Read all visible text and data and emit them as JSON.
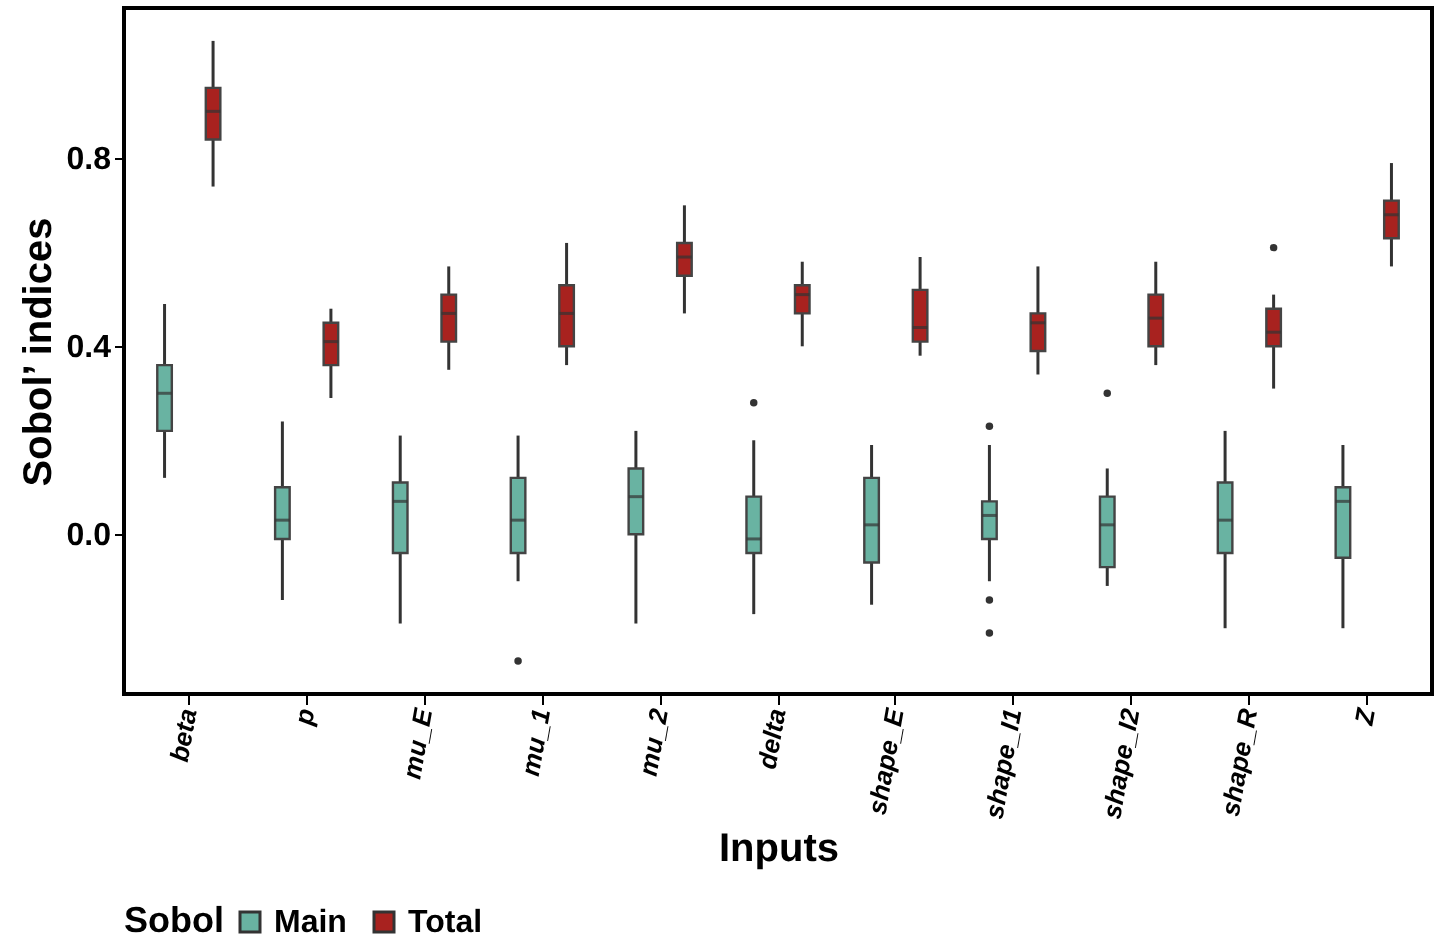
{
  "chart_data": {
    "type": "box",
    "xlabel": "Inputs",
    "ylabel": "Sobol’ indices",
    "legend_title": "Sobol",
    "legend": "bottom",
    "grid": false,
    "categories": [
      "beta",
      "p",
      "mu_E",
      "mu_1",
      "mu_2",
      "delta",
      "shape_E",
      "shape_I1",
      "shape_I2",
      "shape_R",
      "Z"
    ],
    "ylim": [
      -0.34,
      1.12
    ],
    "yticks": [
      {
        "value": 0,
        "label": "0.0"
      },
      {
        "value": 0.4,
        "label": "0.4"
      },
      {
        "value": 0.8,
        "label": "0.8"
      }
    ],
    "series": [
      {
        "name": "Main",
        "color": "#69b3a2",
        "boxes": [
          {
            "low": 0.12,
            "q1": 0.22,
            "median": 0.3,
            "q3": 0.36,
            "high": 0.49
          },
          {
            "low": -0.14,
            "q1": -0.01,
            "median": 0.03,
            "q3": 0.1,
            "high": 0.24
          },
          {
            "low": -0.19,
            "q1": -0.04,
            "median": 0.07,
            "q3": 0.11,
            "high": 0.21
          },
          {
            "low": -0.1,
            "q1": -0.04,
            "median": 0.03,
            "q3": 0.12,
            "high": 0.21,
            "outliers": [
              -0.27
            ]
          },
          {
            "low": -0.19,
            "q1": 0,
            "median": 0.08,
            "q3": 0.14,
            "high": 0.22
          },
          {
            "low": -0.17,
            "q1": -0.04,
            "median": -0.01,
            "q3": 0.08,
            "high": 0.2,
            "outliers": [
              0.28
            ]
          },
          {
            "low": -0.15,
            "q1": -0.06,
            "median": 0.02,
            "q3": 0.12,
            "high": 0.19
          },
          {
            "low": -0.1,
            "q1": -0.01,
            "median": 0.04,
            "q3": 0.07,
            "high": 0.19,
            "outliers": [
              0.23,
              -0.14,
              -0.21
            ]
          },
          {
            "low": -0.11,
            "q1": -0.07,
            "median": 0.02,
            "q3": 0.08,
            "high": 0.14,
            "outliers": [
              0.3
            ]
          },
          {
            "low": -0.2,
            "q1": -0.04,
            "median": 0.03,
            "q3": 0.11,
            "high": 0.22
          },
          {
            "low": -0.2,
            "q1": -0.05,
            "median": 0.07,
            "q3": 0.1,
            "high": 0.19
          }
        ]
      },
      {
        "name": "Total",
        "color": "#a8221f",
        "boxes": [
          {
            "low": 0.74,
            "q1": 0.84,
            "median": 0.9,
            "q3": 0.95,
            "high": 1.05
          },
          {
            "low": 0.29,
            "q1": 0.36,
            "median": 0.41,
            "q3": 0.45,
            "high": 0.48
          },
          {
            "low": 0.35,
            "q1": 0.41,
            "median": 0.47,
            "q3": 0.51,
            "high": 0.57
          },
          {
            "low": 0.36,
            "q1": 0.4,
            "median": 0.47,
            "q3": 0.53,
            "high": 0.62
          },
          {
            "low": 0.47,
            "q1": 0.55,
            "median": 0.59,
            "q3": 0.62,
            "high": 0.7
          },
          {
            "low": 0.4,
            "q1": 0.47,
            "median": 0.51,
            "q3": 0.53,
            "high": 0.58
          },
          {
            "low": 0.38,
            "q1": 0.41,
            "median": 0.44,
            "q3": 0.52,
            "high": 0.59
          },
          {
            "low": 0.34,
            "q1": 0.39,
            "median": 0.45,
            "q3": 0.47,
            "high": 0.57
          },
          {
            "low": 0.36,
            "q1": 0.4,
            "median": 0.46,
            "q3": 0.51,
            "high": 0.58
          },
          {
            "low": 0.31,
            "q1": 0.4,
            "median": 0.43,
            "q3": 0.48,
            "high": 0.51,
            "outliers": [
              0.61
            ]
          },
          {
            "low": 0.57,
            "q1": 0.63,
            "median": 0.68,
            "q3": 0.71,
            "high": 0.79
          }
        ]
      }
    ]
  }
}
